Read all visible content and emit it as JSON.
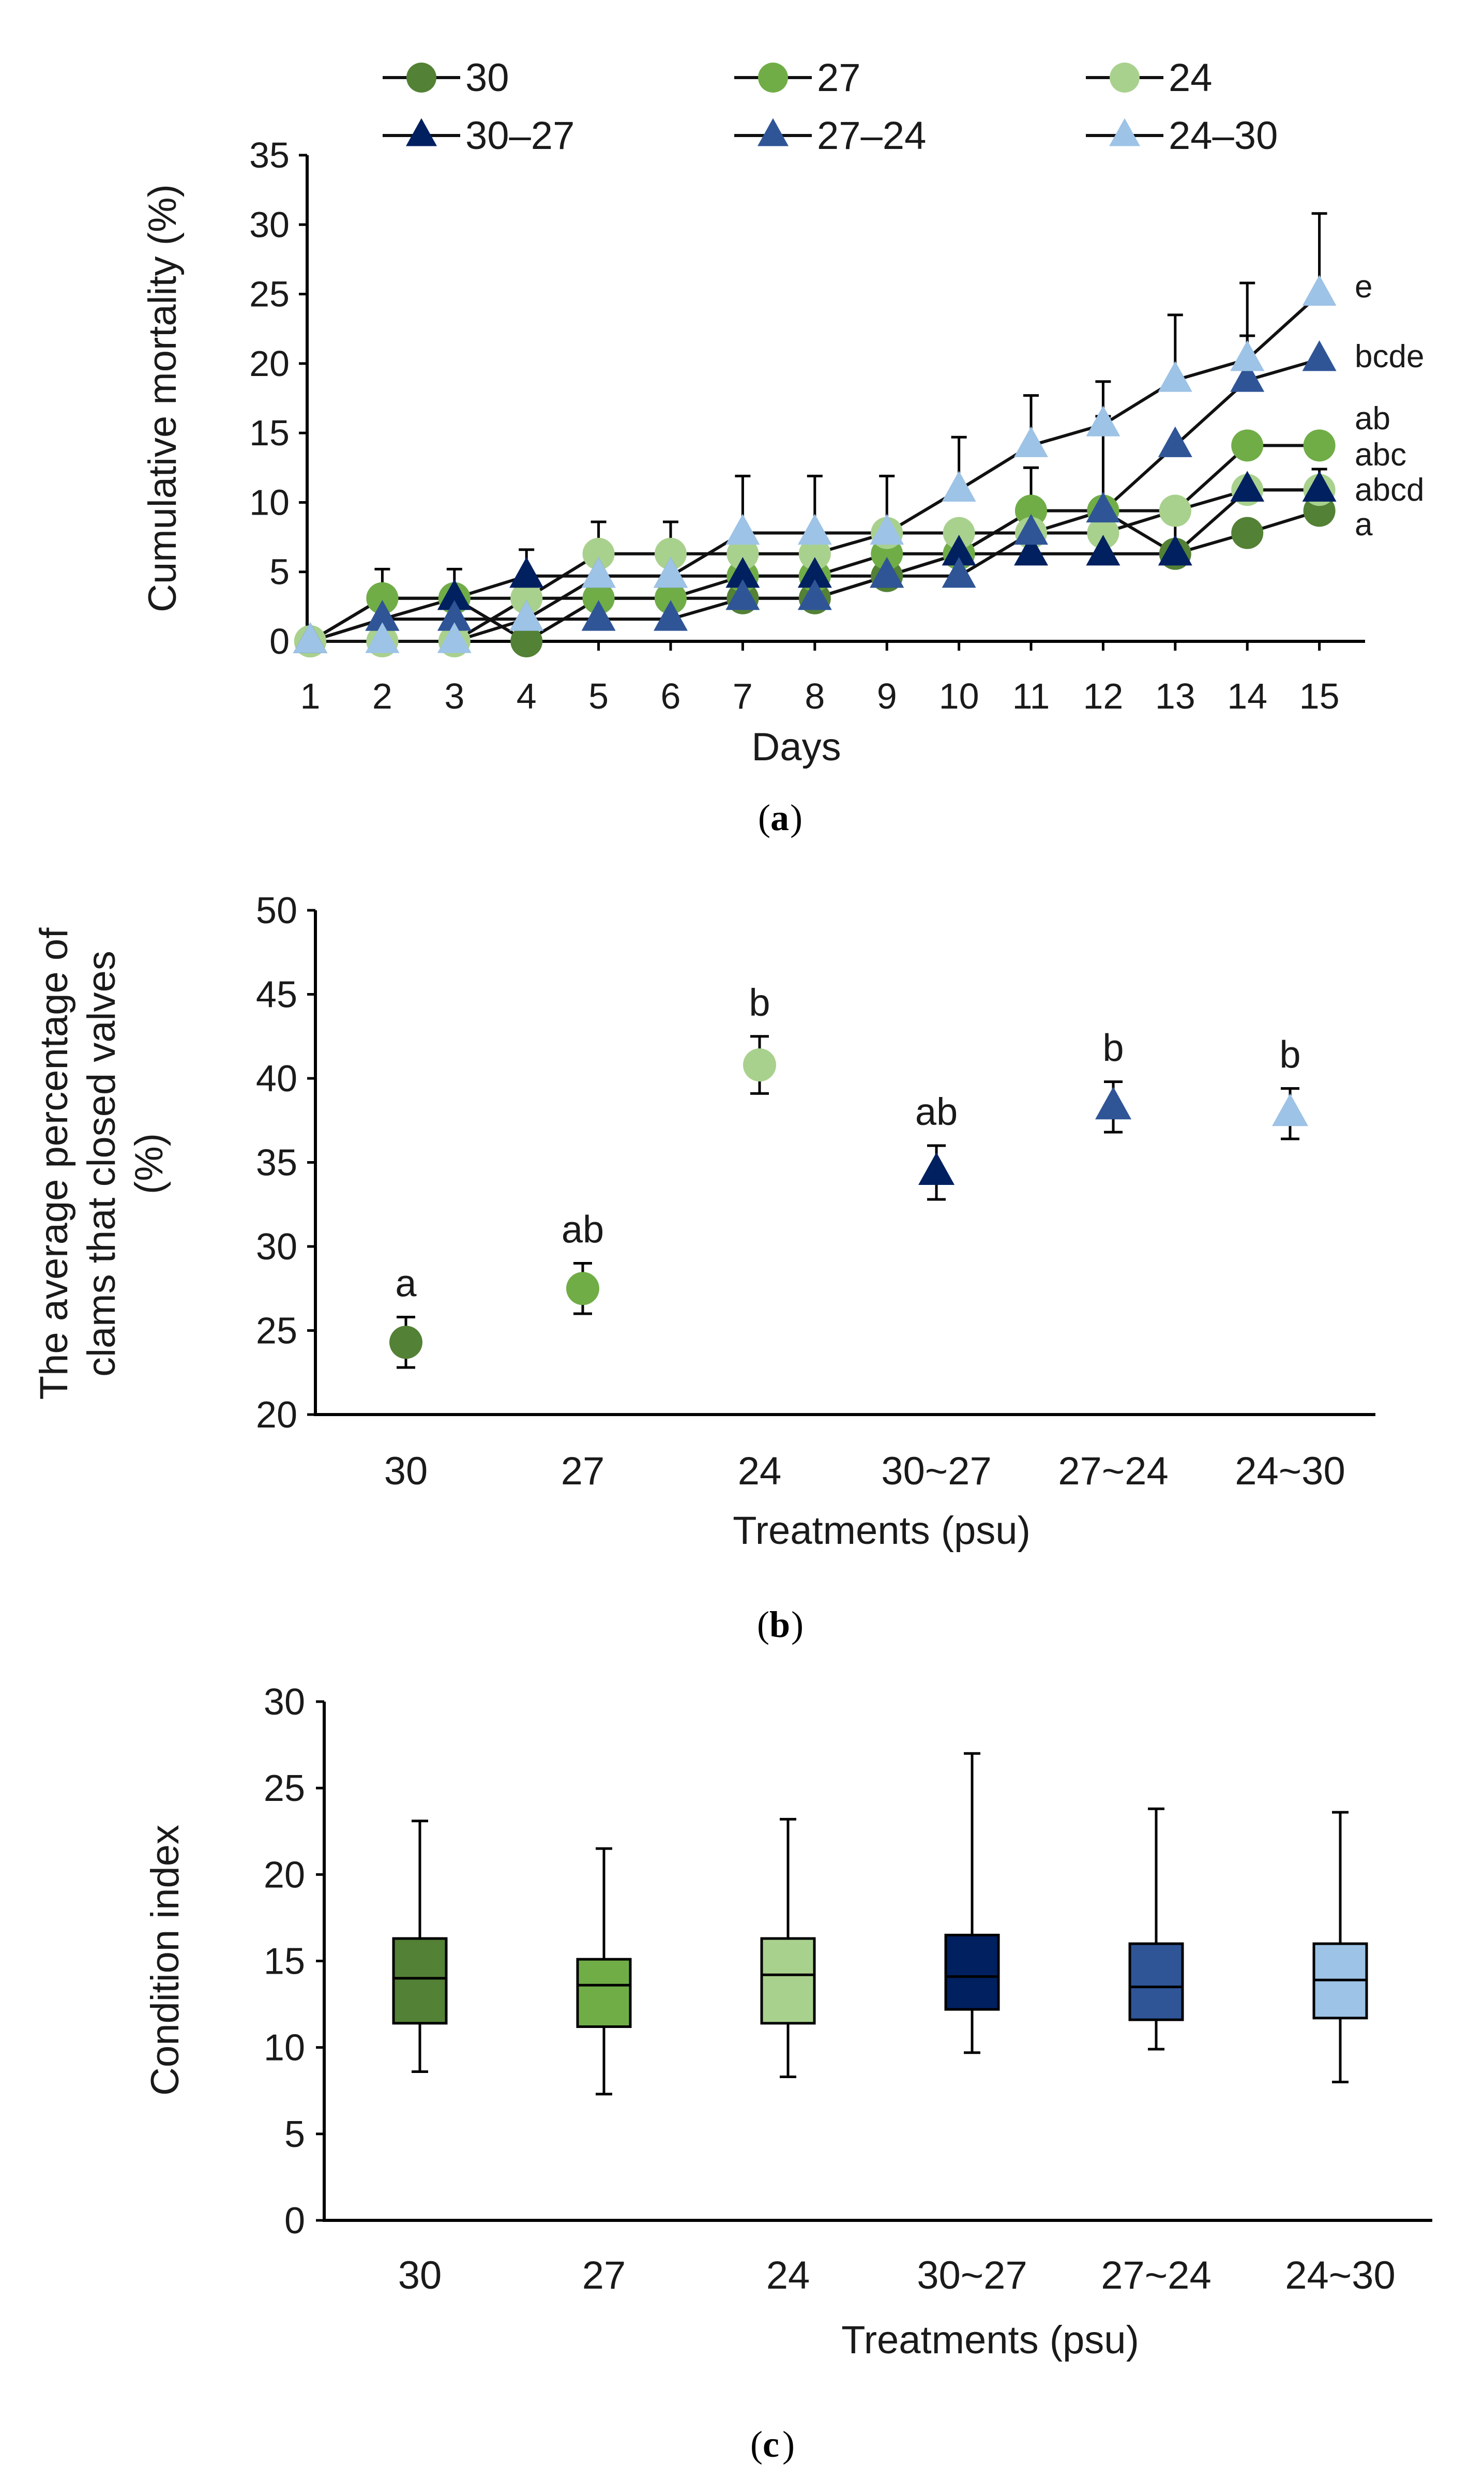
{
  "chart_data": [
    {
      "type": "line",
      "panel": "a",
      "caption_letter": "a",
      "xlabel": "Days",
      "ylabel": "Cumulative mortality (%)",
      "ylim": [
        0,
        35
      ],
      "yticks": [
        0,
        5,
        10,
        15,
        20,
        25,
        30,
        35
      ],
      "x": [
        1,
        2,
        3,
        4,
        5,
        6,
        7,
        8,
        9,
        10,
        11,
        12,
        13,
        14,
        15
      ],
      "legend_position": "top",
      "series": [
        {
          "name": "30",
          "marker": "circle",
          "color": "#538135",
          "values": [
            0,
            3.1,
            3.1,
            0,
            3.1,
            3.1,
            3.1,
            3.1,
            4.7,
            6.3,
            9.4,
            9.4,
            6.3,
            7.8,
            9.4
          ],
          "error": [
            0,
            0,
            0,
            0,
            0,
            0,
            0,
            0,
            0,
            0,
            0,
            0,
            0,
            0,
            3
          ]
        },
        {
          "name": "27",
          "marker": "circle",
          "color": "#70AD47",
          "values": [
            0,
            3.1,
            3.1,
            3.1,
            3.1,
            3.1,
            4.7,
            4.7,
            6.3,
            6.3,
            9.4,
            9.4,
            9.4,
            14.1,
            14.1
          ],
          "error": [
            0,
            2.1,
            2.1,
            0,
            0,
            0,
            0,
            0,
            0,
            0,
            0,
            0,
            0,
            0,
            0
          ]
        },
        {
          "name": "24",
          "marker": "circle",
          "color": "#A9D18E",
          "values": [
            0,
            0,
            0,
            3.1,
            6.3,
            6.3,
            6.3,
            6.3,
            7.8,
            7.8,
            7.8,
            7.8,
            9.4,
            10.9,
            10.9
          ],
          "error": [
            0,
            0,
            0,
            0,
            2.3,
            2.3,
            0,
            0,
            0,
            0,
            0,
            0,
            0,
            0,
            0
          ]
        },
        {
          "name": "30–27",
          "marker": "triangle",
          "color": "#002060",
          "values": [
            0,
            1.6,
            3.1,
            4.7,
            4.7,
            4.7,
            4.7,
            4.7,
            4.7,
            6.3,
            6.3,
            6.3,
            6.3,
            10.9,
            10.9
          ],
          "error": [
            0,
            0,
            0,
            1.9,
            0,
            0,
            0,
            0,
            0,
            0,
            0,
            0,
            3.1,
            0,
            0
          ]
        },
        {
          "name": "27–24",
          "marker": "triangle",
          "color": "#2F5597",
          "values": [
            0,
            1.6,
            1.6,
            1.6,
            1.6,
            1.6,
            3.1,
            3.1,
            4.7,
            4.7,
            7.8,
            9.4,
            14.1,
            18.8,
            20.3
          ],
          "error": [
            0,
            0,
            0,
            0,
            0,
            0,
            1.9,
            1.9,
            2.2,
            2.2,
            4.7,
            6.8,
            0,
            3.2,
            0
          ]
        },
        {
          "name": "24–30",
          "marker": "triangle",
          "color": "#9DC3E6",
          "values": [
            0,
            0,
            0,
            1.6,
            4.7,
            4.7,
            7.8,
            7.8,
            7.8,
            10.9,
            14.1,
            15.6,
            18.8,
            20.3,
            25.0
          ],
          "error": [
            0,
            0,
            0,
            0,
            0,
            0,
            4.1,
            4.1,
            4.1,
            3.8,
            3.6,
            3.1,
            4.7,
            5.5,
            5.8
          ]
        }
      ],
      "annotations": [
        {
          "text": "e",
          "series": "24–30"
        },
        {
          "text": "bcde",
          "series": "27–24"
        },
        {
          "text": "ab",
          "series": "27"
        },
        {
          "text": "abc",
          "series": "24"
        },
        {
          "text": "abcd",
          "series": "30–27"
        },
        {
          "text": "a",
          "series": "30"
        }
      ]
    },
    {
      "type": "scatter",
      "panel": "b",
      "caption_letter": "b",
      "xlabel": "Treatments (psu)",
      "ylabel_lines": [
        "The average percentage of",
        "clams that closed valves",
        "(%)"
      ],
      "ylim": [
        20,
        50
      ],
      "yticks": [
        20,
        25,
        30,
        35,
        40,
        45,
        50
      ],
      "categories": [
        "30",
        "27",
        "24",
        "30~27",
        "27~24",
        "24~30"
      ],
      "values": [
        24.3,
        27.5,
        40.8,
        34.4,
        38.3,
        37.9
      ],
      "error": [
        1.5,
        1.5,
        1.7,
        1.6,
        1.5,
        1.5
      ],
      "markers": [
        "circle",
        "circle",
        "circle",
        "triangle",
        "triangle",
        "triangle"
      ],
      "colors": [
        "#538135",
        "#70AD47",
        "#A9D18E",
        "#002060",
        "#2F5597",
        "#9DC3E6"
      ],
      "letters": [
        "a",
        "ab",
        "b",
        "ab",
        "b",
        "b"
      ]
    },
    {
      "type": "box",
      "panel": "c",
      "caption_letter": "c",
      "xlabel": "Treatments (psu)",
      "ylabel": "Condition index",
      "ylim": [
        0,
        30
      ],
      "yticks": [
        0,
        5,
        10,
        15,
        20,
        25,
        30
      ],
      "categories": [
        "30",
        "27",
        "24",
        "30~27",
        "27~24",
        "24~30"
      ],
      "colors": [
        "#538135",
        "#70AD47",
        "#A9D18E",
        "#002060",
        "#2F5597",
        "#9DC3E6"
      ],
      "boxes": [
        {
          "min": 8.6,
          "q1": 11.4,
          "median": 14.0,
          "q3": 16.3,
          "max": 23.1
        },
        {
          "min": 7.3,
          "q1": 11.2,
          "median": 13.6,
          "q3": 15.1,
          "max": 21.5
        },
        {
          "min": 8.3,
          "q1": 11.4,
          "median": 14.2,
          "q3": 16.3,
          "max": 23.2
        },
        {
          "min": 9.7,
          "q1": 12.2,
          "median": 14.1,
          "q3": 16.5,
          "max": 27.0
        },
        {
          "min": 9.9,
          "q1": 11.6,
          "median": 13.5,
          "q3": 16.0,
          "max": 23.8
        },
        {
          "min": 8.0,
          "q1": 11.7,
          "median": 13.9,
          "q3": 16.0,
          "max": 23.6
        }
      ]
    }
  ]
}
